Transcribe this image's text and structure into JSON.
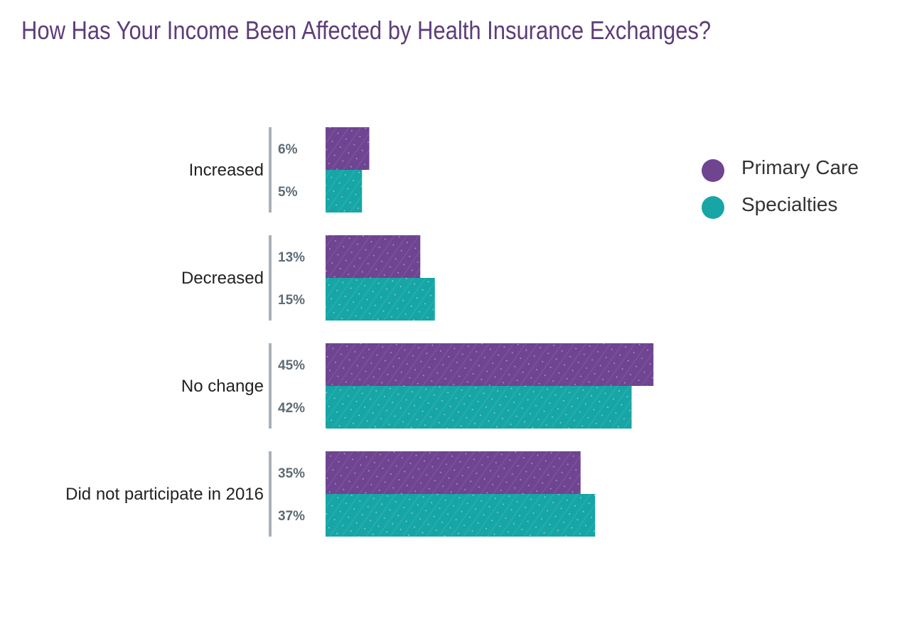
{
  "title": "How Has Your Income Been Affected by Health Insurance Exchanges?",
  "colors": {
    "title": "#5d3d79",
    "primary_care": "#6f4490",
    "specialties": "#17a5a5",
    "separator": "#a9b1b8",
    "value_label": "#5e6b75"
  },
  "chart_data": {
    "type": "bar",
    "orientation": "horizontal",
    "title": "How Has Your Income Been Affected by Health Insurance Exchanges?",
    "categories": [
      "Increased",
      "Decreased",
      "No change",
      "Did not participate in 2016"
    ],
    "series": [
      {
        "name": "Primary Care",
        "values": [
          6,
          13,
          45,
          35
        ],
        "labels": [
          "6%",
          "13%",
          "45%",
          "35%"
        ],
        "color": "#6f4490"
      },
      {
        "name": "Specialties",
        "values": [
          5,
          15,
          42,
          37
        ],
        "labels": [
          "5%",
          "15%",
          "42%",
          "37%"
        ],
        "color": "#17a5a5"
      }
    ],
    "xlabel": "",
    "ylabel": "",
    "unit": "%",
    "grid": false,
    "legend_position": "top-right"
  }
}
